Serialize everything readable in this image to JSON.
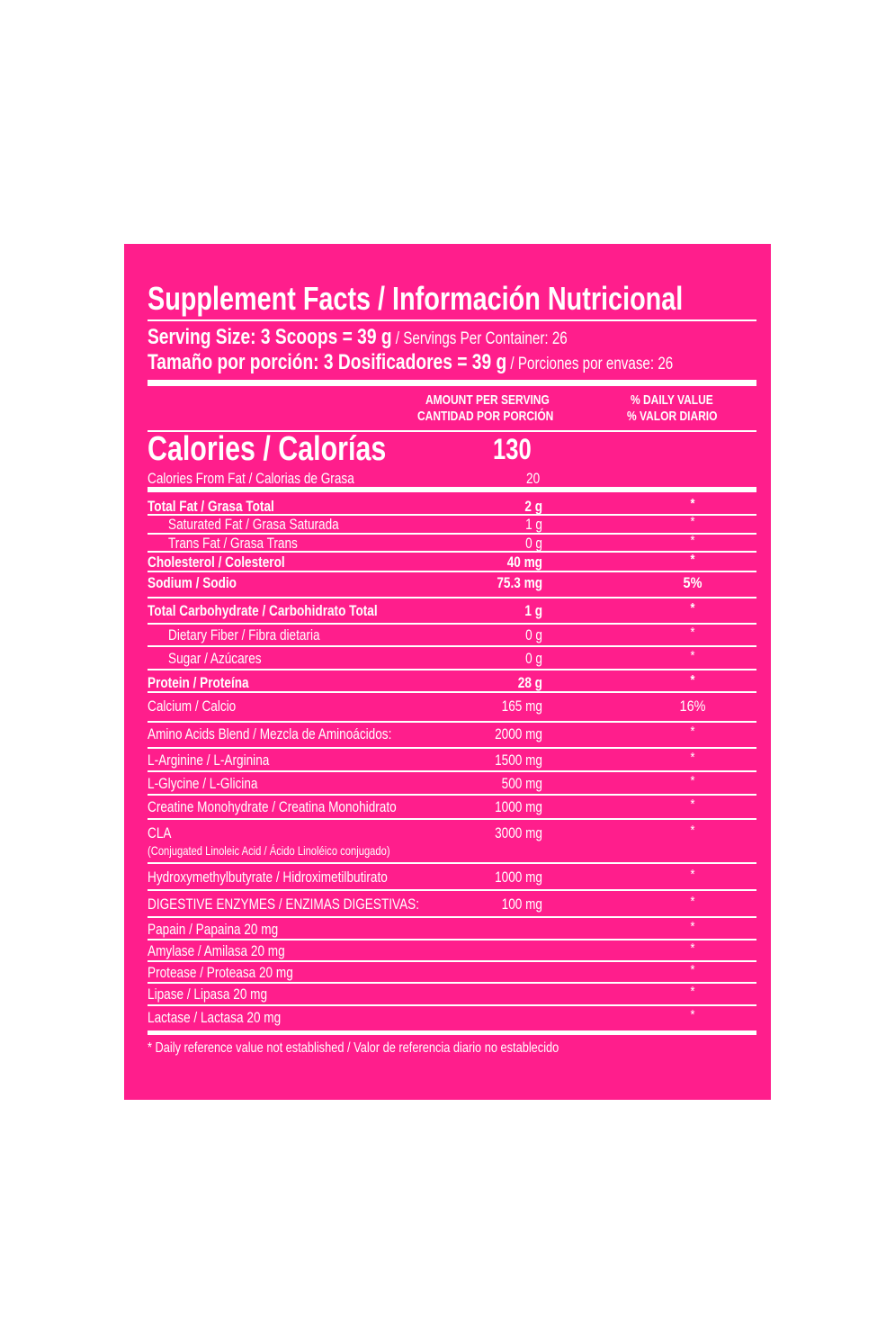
{
  "title": "Supplement Facts / Información Nutricional",
  "serving_en_bold": "Serving Size: 3 Scoops = 39 g",
  "serving_en_rest": " / Servings Per Container: 26",
  "serving_es_bold": "Tamaño por porción: 3 Dosificadores = 39 g",
  "serving_es_rest": " / Porciones por envase: 26",
  "col_amount_1": "AMOUNT PER SERVING",
  "col_amount_2": "CANTIDAD POR PORCIÓN",
  "col_dv_1": "% DAILY VALUE",
  "col_dv_2": "% VALOR DIARIO",
  "calories_label": "Calories / Calorías",
  "calories_value": "130",
  "cal_fat_label": "Calories From Fat / Calorias de Grasa",
  "cal_fat_value": "20",
  "rows": [
    {
      "label": "Total Fat /  Grasa Total",
      "amount": "2 g",
      "dv": "*",
      "bold": true,
      "indent": false
    },
    {
      "label": "Saturated Fat / Grasa Saturada",
      "amount": "1 g",
      "dv": "*",
      "bold": false,
      "indent": true
    },
    {
      "label": "Trans Fat / Grasa Trans",
      "amount": "0 g",
      "dv": "*",
      "bold": false,
      "indent": true
    },
    {
      "label": "Cholesterol / Colesterol",
      "amount": "40 mg",
      "dv": "*",
      "bold": true,
      "indent": false
    },
    {
      "label": "Sodium / Sodio",
      "amount": "75.3 mg",
      "dv": "5%",
      "bold": true,
      "indent": false
    },
    {
      "label": "Total Carbohydrate / Carbohidrato Total",
      "amount": "1 g",
      "dv": "*",
      "bold": true,
      "indent": false
    },
    {
      "label": "Dietary Fiber / Fibra dietaria",
      "amount": "0 g",
      "dv": "*",
      "bold": false,
      "indent": true
    },
    {
      "label": "Sugar / Azúcares",
      "amount": "0 g",
      "dv": "*",
      "bold": false,
      "indent": true
    },
    {
      "label": "Protein / Proteína",
      "amount": "28 g",
      "dv": "*",
      "bold": true,
      "indent": false
    },
    {
      "label": "Calcium / Calcio",
      "amount": "165 mg",
      "dv": "16%",
      "bold": false,
      "indent": false
    },
    {
      "label": "Amino Acids Blend / Mezcla de Aminoácidos:",
      "amount": "2000 mg",
      "dv": "*",
      "bold": false,
      "indent": false
    },
    {
      "label": "L-Arginine / L-Arginina",
      "amount": "1500 mg",
      "dv": "*",
      "bold": false,
      "indent": false
    },
    {
      "label": "L-Glycine / L-Glicina",
      "amount": "500 mg",
      "dv": "*",
      "bold": false,
      "indent": false
    },
    {
      "label": "Creatine Monohydrate / Creatina Monohidrato",
      "amount": "1000 mg",
      "dv": "*",
      "bold": false,
      "indent": false
    },
    {
      "label": "CLA",
      "sublabel": "(Conjugated Linoleic Acid / Ácido Linoléico conjugado)",
      "amount": "3000 mg",
      "dv": "*",
      "bold": false,
      "indent": false
    },
    {
      "label": "Hydroxymethylbutyrate / Hidroximetilbutirato",
      "amount": "1000 mg",
      "dv": "*",
      "bold": false,
      "indent": false
    },
    {
      "label": "DIGESTIVE ENZYMES / ENZIMAS DIGESTIVAS:",
      "amount": "100 mg",
      "dv": "*",
      "bold": false,
      "indent": false
    },
    {
      "label": "Papain / Papaina  20 mg",
      "amount": "",
      "dv": "*",
      "bold": false,
      "indent": false
    },
    {
      "label": "Amylase / Amilasa  20 mg",
      "amount": "",
      "dv": "*",
      "bold": false,
      "indent": false
    },
    {
      "label": "Protease / Proteasa  20 mg",
      "amount": "",
      "dv": "*",
      "bold": false,
      "indent": false
    },
    {
      "label": "Lipase / Lipasa  20 mg",
      "amount": "",
      "dv": "*",
      "bold": false,
      "indent": false
    },
    {
      "label": "Lactase / Lactasa  20 mg",
      "amount": "",
      "dv": "*",
      "bold": false,
      "indent": false
    }
  ],
  "footnote": "* Daily reference value not established / Valor de referencia diario no establecido"
}
